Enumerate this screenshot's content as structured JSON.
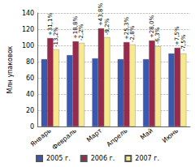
{
  "chart_data": {
    "type": "bar",
    "y_label": "Млн упаковок",
    "categories": [
      "Январь",
      "Февраль",
      "Март",
      "Апрель",
      "Май",
      "Июнь"
    ],
    "series": [
      {
        "name": "2005 г.",
        "color": "#3b58b0",
        "values": [
          83,
          88,
          84,
          83,
          83,
          90
        ]
      },
      {
        "name": "2006 г.",
        "color": "#992a4c",
        "values": [
          109,
          105,
          121,
          104,
          106,
          97
        ]
      },
      {
        "name": "2007 г.",
        "color": "#f6e98e",
        "values": [
          95,
          103,
          110,
          101,
          99,
          90
        ]
      }
    ],
    "annotations": [
      {
        "category": "Январь",
        "series": "2006 г.",
        "text": "+31,1%"
      },
      {
        "category": "Январь",
        "series": "2007 г.",
        "text": "-13,2%"
      },
      {
        "category": "Февраль",
        "series": "2006 г.",
        "text": "+18,8%"
      },
      {
        "category": "Февраль",
        "series": "2007 г.",
        "text": "-2,2%"
      },
      {
        "category": "Март",
        "series": "2006 г.",
        "text": "+43,8%"
      },
      {
        "category": "Март",
        "series": "2007 г.",
        "text": "-9,2%"
      },
      {
        "category": "Апрель",
        "series": "2006 г.",
        "text": "+25,3%"
      },
      {
        "category": "Апрель",
        "series": "2007 г.",
        "text": "-2,8%"
      },
      {
        "category": "Май",
        "series": "2006 г.",
        "text": "+28,0%"
      },
      {
        "category": "Май",
        "series": "2007 г.",
        "text": "-6,3%"
      },
      {
        "category": "Июнь",
        "series": "2006 г.",
        "text": "+7,5%"
      },
      {
        "category": "Июнь",
        "series": "2007 г.",
        "text": "-7,5%"
      }
    ],
    "ylim": [
      0,
      140
    ],
    "yticks": [
      0,
      20,
      40,
      60,
      80,
      100,
      120,
      140
    ],
    "grid": true,
    "legend": "bottom"
  }
}
